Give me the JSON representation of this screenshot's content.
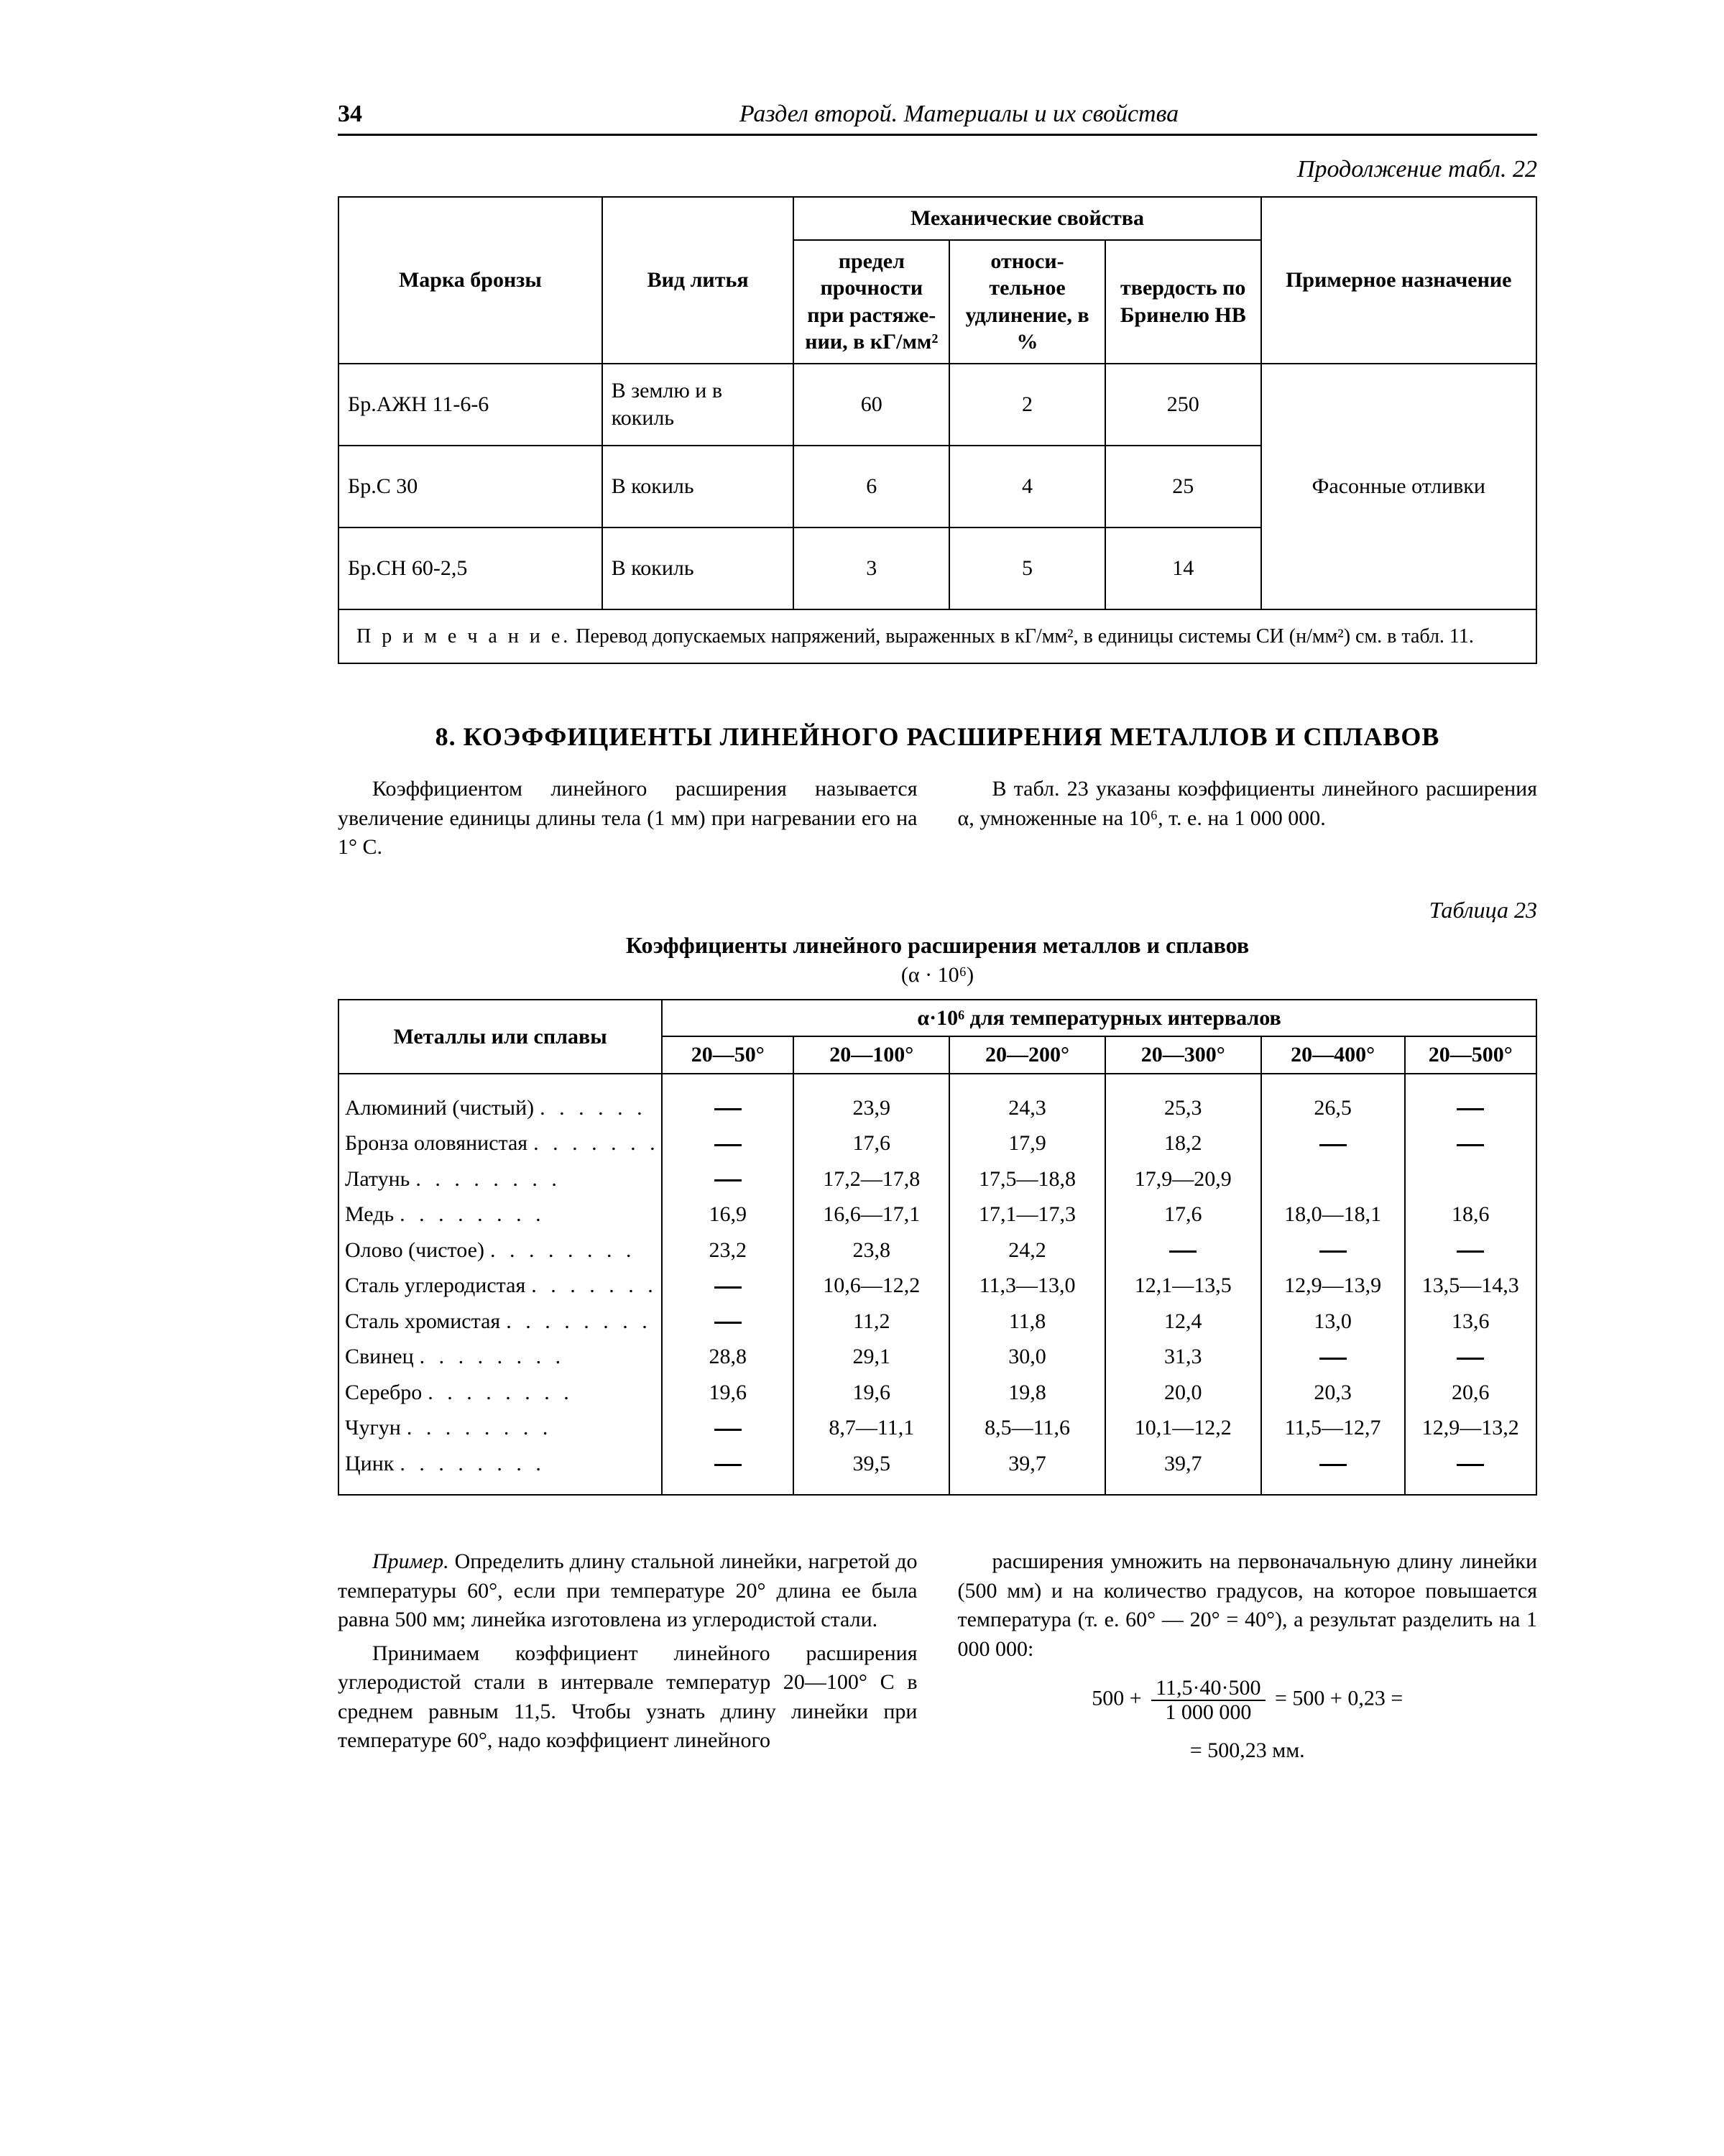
{
  "header": {
    "page_number": "34",
    "section_title": "Раздел второй. Материалы и их свойства",
    "continuation": "Продолжение табл. 22"
  },
  "table22": {
    "col_widths_pct": [
      22,
      16,
      13,
      13,
      13,
      23
    ],
    "head": {
      "mech_group": "Механические свойства",
      "marka": "Марка бронзы",
      "vid": "Вид литья",
      "predel": "предел прочности при растяже­нии, в кГ/мм²",
      "udl": "относи­тельное удлинение, в %",
      "tverd": "твердость по Бринелю HB",
      "prim": "Примерное назначение"
    },
    "rows": [
      {
        "marka": "Бр.АЖН 11-6-6",
        "vid": "В землю и в кокиль",
        "p": "60",
        "u": "2",
        "t": "250"
      },
      {
        "marka": "Бр.С 30",
        "vid": "В кокиль",
        "p": "6",
        "u": "4",
        "t": "25"
      },
      {
        "marka": "Бр.СН 60-2,5",
        "vid": "В кокиль",
        "p": "3",
        "u": "5",
        "t": "14"
      }
    ],
    "purpose_merged": "Фасонные отливки",
    "note_label": "П р и м е ч а н и е.",
    "note_text": " Перевод допускаемых напряжений, выраженных в кГ/мм², в единицы системы СИ (н/мм²) см. в табл. 11."
  },
  "section8": {
    "title": "8. КОЭФФИЦИЕНТЫ ЛИНЕЙНОГО РАСШИРЕНИЯ МЕТАЛЛОВ И СПЛАВОВ",
    "p1": "Коэффициентом линейного расширения называется увеличение единицы длины тела (1 мм) при нагревании его на 1° С.",
    "p2": "В табл. 23 указаны коэффициенты линейного расширения α, умноженные на 10⁶, т. е. на 1 000 000."
  },
  "table23": {
    "caption_right": "Таблица 23",
    "title": "Коэффициенты линейного расширения металлов и сплавов",
    "subtitle": "(α · 10⁶)",
    "group_header": "α·10⁶ для температурных интервалов",
    "col_mat": "Металлы или сплавы",
    "interval_cols": [
      "20—50°",
      "20—100°",
      "20—200°",
      "20—300°",
      "20—400°",
      "20—500°"
    ],
    "col_widths_pct": [
      27,
      11,
      13,
      13,
      13,
      12,
      11
    ],
    "materials": [
      "Алюминий (чистый)",
      "Бронза оловянистая",
      "Латунь",
      "Медь",
      "Олово (чистое)",
      "Сталь углеродистая",
      "Сталь хромистая",
      "Свинец",
      "Серебро",
      "Чугун",
      "Цинк"
    ],
    "values": [
      [
        "—",
        "23,9",
        "24,3",
        "25,3",
        "26,5",
        "—"
      ],
      [
        "—",
        "17,6",
        "17,9",
        "18,2",
        "—",
        "—"
      ],
      [
        "—",
        "17,2—17,8",
        "17,5—18,8",
        "17,9—20,9",
        "",
        ""
      ],
      [
        "16,9",
        "16,6—17,1",
        "17,1—17,3",
        "17,6",
        "18,0—18,1",
        "18,6"
      ],
      [
        "23,2",
        "23,8",
        "24,2",
        "—",
        "—",
        "—"
      ],
      [
        "—",
        "10,6—12,2",
        "11,3—13,0",
        "12,1—13,5",
        "12,9—13,9",
        "13,5—14,3"
      ],
      [
        "—",
        "11,2",
        "11,8",
        "12,4",
        "13,0",
        "13,6"
      ],
      [
        "28,8",
        "29,1",
        "30,0",
        "31,3",
        "—",
        "—"
      ],
      [
        "19,6",
        "19,6",
        "19,8",
        "20,0",
        "20,3",
        "20,6"
      ],
      [
        "—",
        "8,7—11,1",
        "8,5—11,6",
        "10,1—12,2",
        "11,5—12,7",
        "12,9—13,2"
      ],
      [
        "—",
        "39,5",
        "39,7",
        "39,7",
        "—",
        "—"
      ]
    ]
  },
  "example": {
    "label": "Пример.",
    "p1": " Определить длину стальной линейки, нагретой до температуры 60°, если при температуре 20° длина ее была равна 500 мм; линейка изготовлена из углеродистой стали.",
    "p2": "Принимаем коэффициент линейного расширения углеродистой стали в интервале температур 20—100° С в среднем равным 11,5. Чтобы узнать длину линейки при температуре 60°, надо коэффициент линейного",
    "p3": "расширения умножить на первоначальную длину линейки (500 мм) и на количество градусов, на которое повышается температура (т. е. 60° — 20° = 40°), а результат разделить на 1 000 000:",
    "formula_lhs": "500 +",
    "formula_num": "11,5·40·500",
    "formula_den": "1 000 000",
    "formula_mid": " = 500 + 0,23 =",
    "formula_rhs": "= 500,23 мм."
  }
}
